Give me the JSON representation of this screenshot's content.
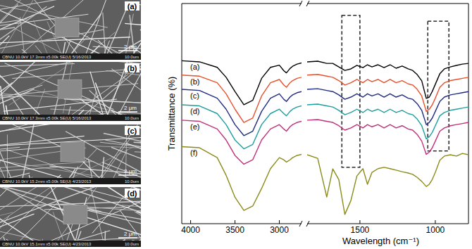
{
  "sem_panels": [
    {
      "label": "(a)",
      "scale_bar": "2 μm",
      "info": "CBNU 10.0kV 17.3mm x5.00k SE(U) 5/16/2013",
      "field_width": "10.0um"
    },
    {
      "label": "(b)",
      "scale_bar": "2 μm",
      "info": "CBNU 10.0kV 17.3mm x5.00k SE(U) 5/16/2013",
      "field_width": "10.0um"
    },
    {
      "label": "(c)",
      "scale_bar": "2 μm",
      "info": "CBNU 10.0kV 15.2mm x5.00k SE(U) 4/23/2013",
      "field_width": "10.0um"
    },
    {
      "label": "(d)",
      "scale_bar": "2 μm",
      "info": "CBNU 10.0kV 15.1mm x5.00k SE(U) 4/23/2013",
      "field_width": "10.0um"
    }
  ],
  "chart_data": [
    {
      "type": "line",
      "y_label": "Transmittance (%)",
      "x": [
        4100,
        3900,
        3700,
        3600,
        3500,
        3400,
        3300,
        3200,
        3100,
        3000,
        2950,
        2920,
        2880,
        2850,
        2800,
        2750
      ],
      "xlim": [
        4100,
        2750
      ],
      "xticks": [
        4000,
        3500,
        3000
      ],
      "ylim": [
        0,
        100
      ],
      "tick_labels": "x",
      "series": [
        {
          "name": "(a)",
          "color": "#000000",
          "values": [
            74,
            73.5,
            71,
            66.5,
            60,
            54,
            56,
            66,
            71,
            72,
            69.5,
            68.5,
            70.5,
            71.5,
            72.5,
            73
          ]
        },
        {
          "name": "(b)",
          "color": "#e8502a",
          "values": [
            67.5,
            67,
            64,
            59,
            52,
            46,
            48,
            58,
            64,
            65.5,
            63,
            62,
            64,
            65,
            66,
            66.5
          ]
        },
        {
          "name": "(c)",
          "color": "#1f2a80",
          "values": [
            61,
            60.5,
            57,
            52,
            45,
            40,
            42,
            51,
            57,
            59,
            56.5,
            55.5,
            57.5,
            58.5,
            59.5,
            60
          ]
        },
        {
          "name": "(d)",
          "color": "#1f9e9e",
          "values": [
            54,
            53.5,
            50,
            45,
            38,
            34,
            36,
            45,
            50,
            52,
            50,
            49,
            51,
            52,
            53,
            53.5
          ]
        },
        {
          "name": "(e)",
          "color": "#c0307a",
          "values": [
            47,
            46.5,
            43,
            38,
            31,
            27,
            29,
            38,
            43,
            45,
            43,
            42,
            44,
            45,
            46,
            46.5
          ]
        },
        {
          "name": "(f)",
          "color": "#8b8b1a",
          "values": [
            35,
            34.5,
            30,
            22,
            12,
            6,
            8,
            16,
            25,
            30,
            29,
            28,
            29,
            30,
            31,
            31.5
          ]
        }
      ]
    },
    {
      "type": "line",
      "x_label": "Wavelength (cm⁻¹)",
      "x": [
        1850,
        1780,
        1720,
        1680,
        1640,
        1600,
        1560,
        1520,
        1480,
        1450,
        1420,
        1380,
        1340,
        1300,
        1260,
        1220,
        1180,
        1150,
        1120,
        1090,
        1060,
        1040,
        1020,
        1000,
        970,
        940,
        900,
        860,
        820,
        780
      ],
      "xlim": [
        1850,
        780
      ],
      "xticks": [
        1500,
        1000
      ],
      "ylim": [
        0,
        100
      ],
      "tick_labels": "x",
      "highlights": [
        {
          "x": [
            1620,
            1500
          ],
          "y": [
            25.6,
            94.6
          ]
        },
        {
          "x": [
            1050,
            910
          ],
          "y": [
            33,
            92
          ]
        }
      ],
      "series": [
        {
          "color": "#000000",
          "values": [
            73.5,
            73.8,
            72.8,
            72.8,
            71.2,
            69.6,
            70.3,
            71.9,
            70.9,
            72.2,
            71.2,
            72.2,
            70.9,
            72.2,
            70.6,
            71.6,
            70.3,
            69.6,
            67.7,
            64.9,
            56.9,
            57.5,
            60.1,
            63.3,
            68.1,
            70.3,
            71.2,
            71.9,
            72.5,
            72.8
          ]
        },
        {
          "color": "#e8502a",
          "values": [
            67.5,
            67.8,
            67,
            66.5,
            65,
            63,
            64,
            65.5,
            64,
            65.5,
            64.5,
            65.5,
            64,
            65.5,
            64,
            65,
            63.5,
            63,
            61,
            58,
            51,
            52,
            54,
            57,
            62,
            64,
            65,
            65.5,
            66,
            66.5
          ]
        },
        {
          "color": "#1f2a80",
          "values": [
            61,
            61.3,
            60.5,
            60,
            58.5,
            56.5,
            57.5,
            59,
            57.5,
            59,
            58,
            59,
            57.5,
            59,
            57.5,
            58.5,
            57,
            56.5,
            54.5,
            51.5,
            45,
            46,
            48,
            51,
            55.5,
            57.5,
            58.5,
            59,
            59.5,
            60
          ]
        },
        {
          "color": "#1f9e9e",
          "values": [
            54,
            54.3,
            53.5,
            53,
            51.5,
            49.5,
            50.5,
            52,
            50.5,
            52,
            51,
            52,
            50.5,
            52,
            50.5,
            51.5,
            50,
            49.5,
            47.5,
            44.5,
            38.5,
            39.5,
            41.5,
            44.5,
            49,
            50.5,
            51.5,
            52,
            52.5,
            53
          ]
        },
        {
          "color": "#c0307a",
          "values": [
            47,
            47.3,
            46.5,
            46,
            44.5,
            42.5,
            43.5,
            45,
            43.5,
            45,
            44,
            45,
            43.5,
            45,
            43.5,
            44.5,
            43,
            42.5,
            40.5,
            37.5,
            31.5,
            32.5,
            34.5,
            37.5,
            42,
            43.5,
            44.5,
            45,
            45.5,
            46
          ]
        },
        {
          "color": "#8b8b1a",
          "values": [
            31.3,
            29.7,
            12.1,
            24.9,
            20,
            4.2,
            10.5,
            21.7,
            25,
            17.9,
            23.3,
            25,
            25.6,
            25,
            24.3,
            23.6,
            23,
            22.4,
            21,
            19.2,
            16.9,
            17.9,
            20.1,
            23.3,
            28.8,
            30.7,
            31.3,
            30.7,
            31.9,
            31.3
          ]
        }
      ]
    }
  ]
}
